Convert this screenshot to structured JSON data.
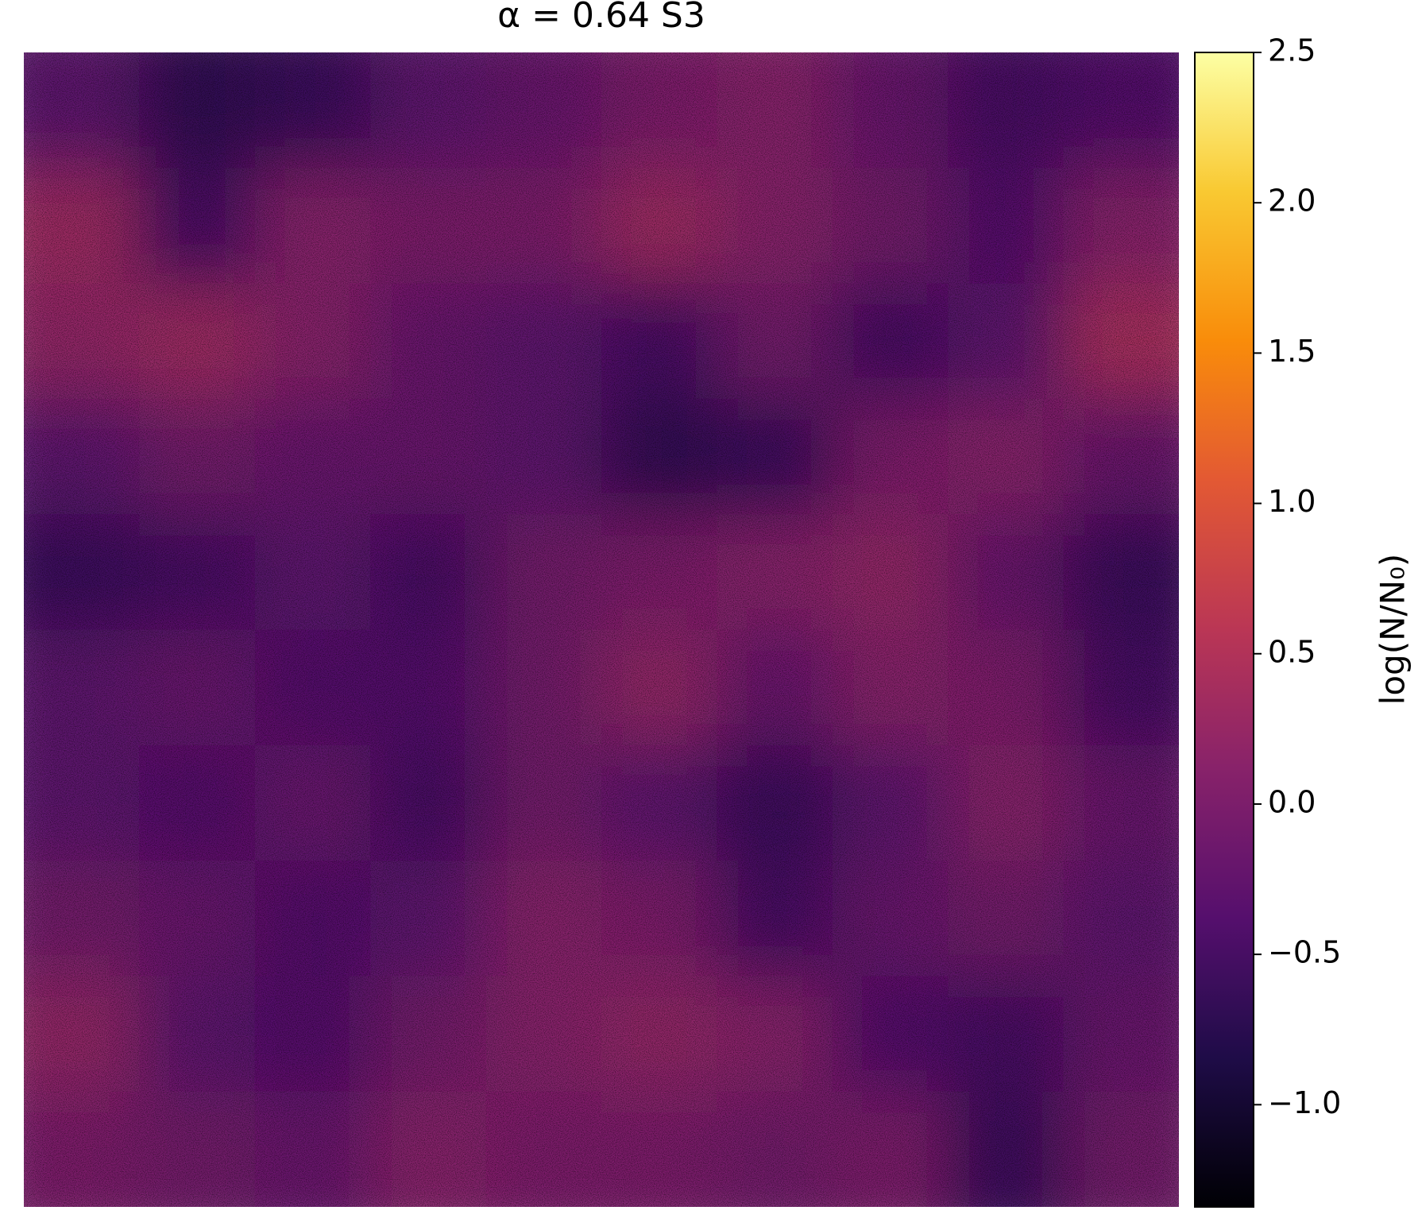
{
  "chart_data": {
    "type": "heatmap",
    "title": "α = 0.64 S3",
    "colorbar_label": "log(N/N₀)",
    "colormap": "inferno",
    "z": [
      [
        -0.3,
        -0.7,
        -0.6,
        -0.3,
        -0.2,
        0.0,
        0.1,
        -0.2,
        -0.5,
        -0.4
      ],
      [
        0.3,
        -0.5,
        0.1,
        0.0,
        0.0,
        0.3,
        0.1,
        -0.1,
        -0.4,
        0.1
      ],
      [
        0.2,
        0.3,
        0.1,
        -0.2,
        -0.3,
        -0.5,
        -0.1,
        -0.5,
        -0.3,
        0.4
      ],
      [
        -0.3,
        -0.1,
        -0.2,
        -0.2,
        -0.3,
        -0.7,
        -0.6,
        0.0,
        0.1,
        -0.2
      ],
      [
        -0.6,
        -0.5,
        -0.3,
        -0.5,
        -0.1,
        0.0,
        0.1,
        0.2,
        -0.2,
        -0.6
      ],
      [
        -0.3,
        -0.2,
        -0.4,
        -0.4,
        -0.1,
        0.2,
        -0.2,
        0.1,
        0.0,
        -0.5
      ],
      [
        -0.3,
        -0.4,
        -0.2,
        -0.5,
        -0.1,
        -0.3,
        -0.6,
        -0.3,
        0.1,
        -0.2
      ],
      [
        -0.1,
        -0.2,
        -0.4,
        -0.3,
        0.1,
        0.0,
        -0.5,
        -0.2,
        -0.1,
        -0.3
      ],
      [
        0.2,
        -0.3,
        -0.4,
        -0.1,
        0.1,
        0.2,
        0.1,
        -0.4,
        -0.5,
        -0.2
      ],
      [
        0.0,
        -0.1,
        -0.2,
        0.1,
        0.0,
        0.0,
        -0.1,
        0.0,
        -0.6,
        -0.1
      ]
    ],
    "vlim": [
      -1.34,
      2.5
    ],
    "ticks": [
      {
        "value": -1.0,
        "label": "−1.0"
      },
      {
        "value": -0.5,
        "label": "−0.5"
      },
      {
        "value": 0,
        "label": "0.0"
      },
      {
        "value": 0.5,
        "label": "0.5"
      },
      {
        "value": 1.0,
        "label": "1.0"
      },
      {
        "value": 1.5,
        "label": "1.5"
      },
      {
        "value": 2.0,
        "label": "2.0"
      },
      {
        "value": 2.5,
        "label": "2.5"
      }
    ]
  }
}
